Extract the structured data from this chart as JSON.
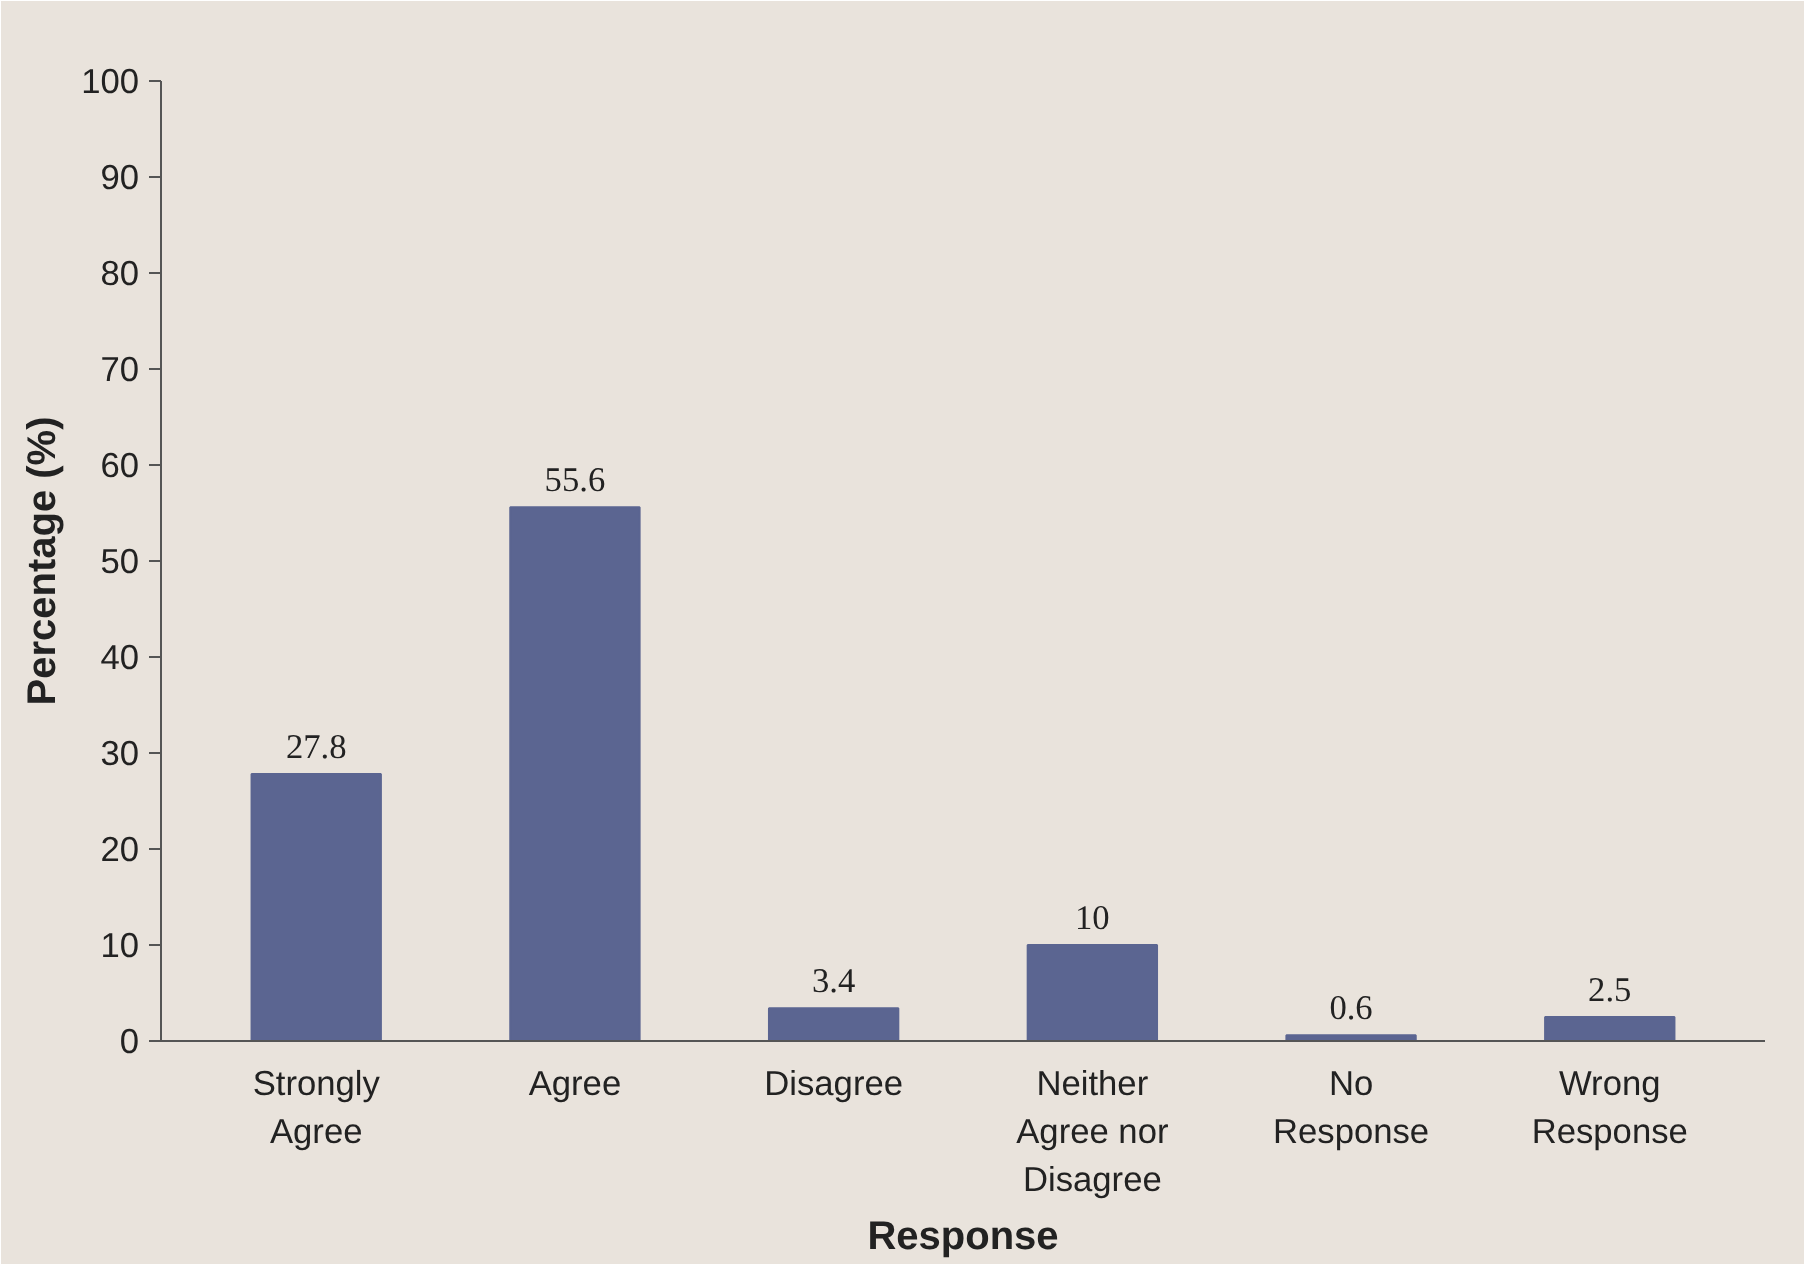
{
  "chart_data": {
    "type": "bar",
    "xlabel": "Response",
    "ylabel": "Percentage (%)",
    "categories": [
      "Strongly Agree",
      "Agree",
      "Disagree",
      "Neither Agree nor Disagree",
      "No Response",
      "Wrong Response"
    ],
    "values": [
      27.8,
      55.6,
      3.4,
      10,
      0.6,
      2.5
    ],
    "color": "#5b6591",
    "ylim": [
      0,
      100
    ],
    "yticks": [
      0,
      10,
      20,
      30,
      40,
      50,
      60,
      70,
      80,
      90,
      100
    ],
    "grid": false,
    "data_labels": true
  }
}
